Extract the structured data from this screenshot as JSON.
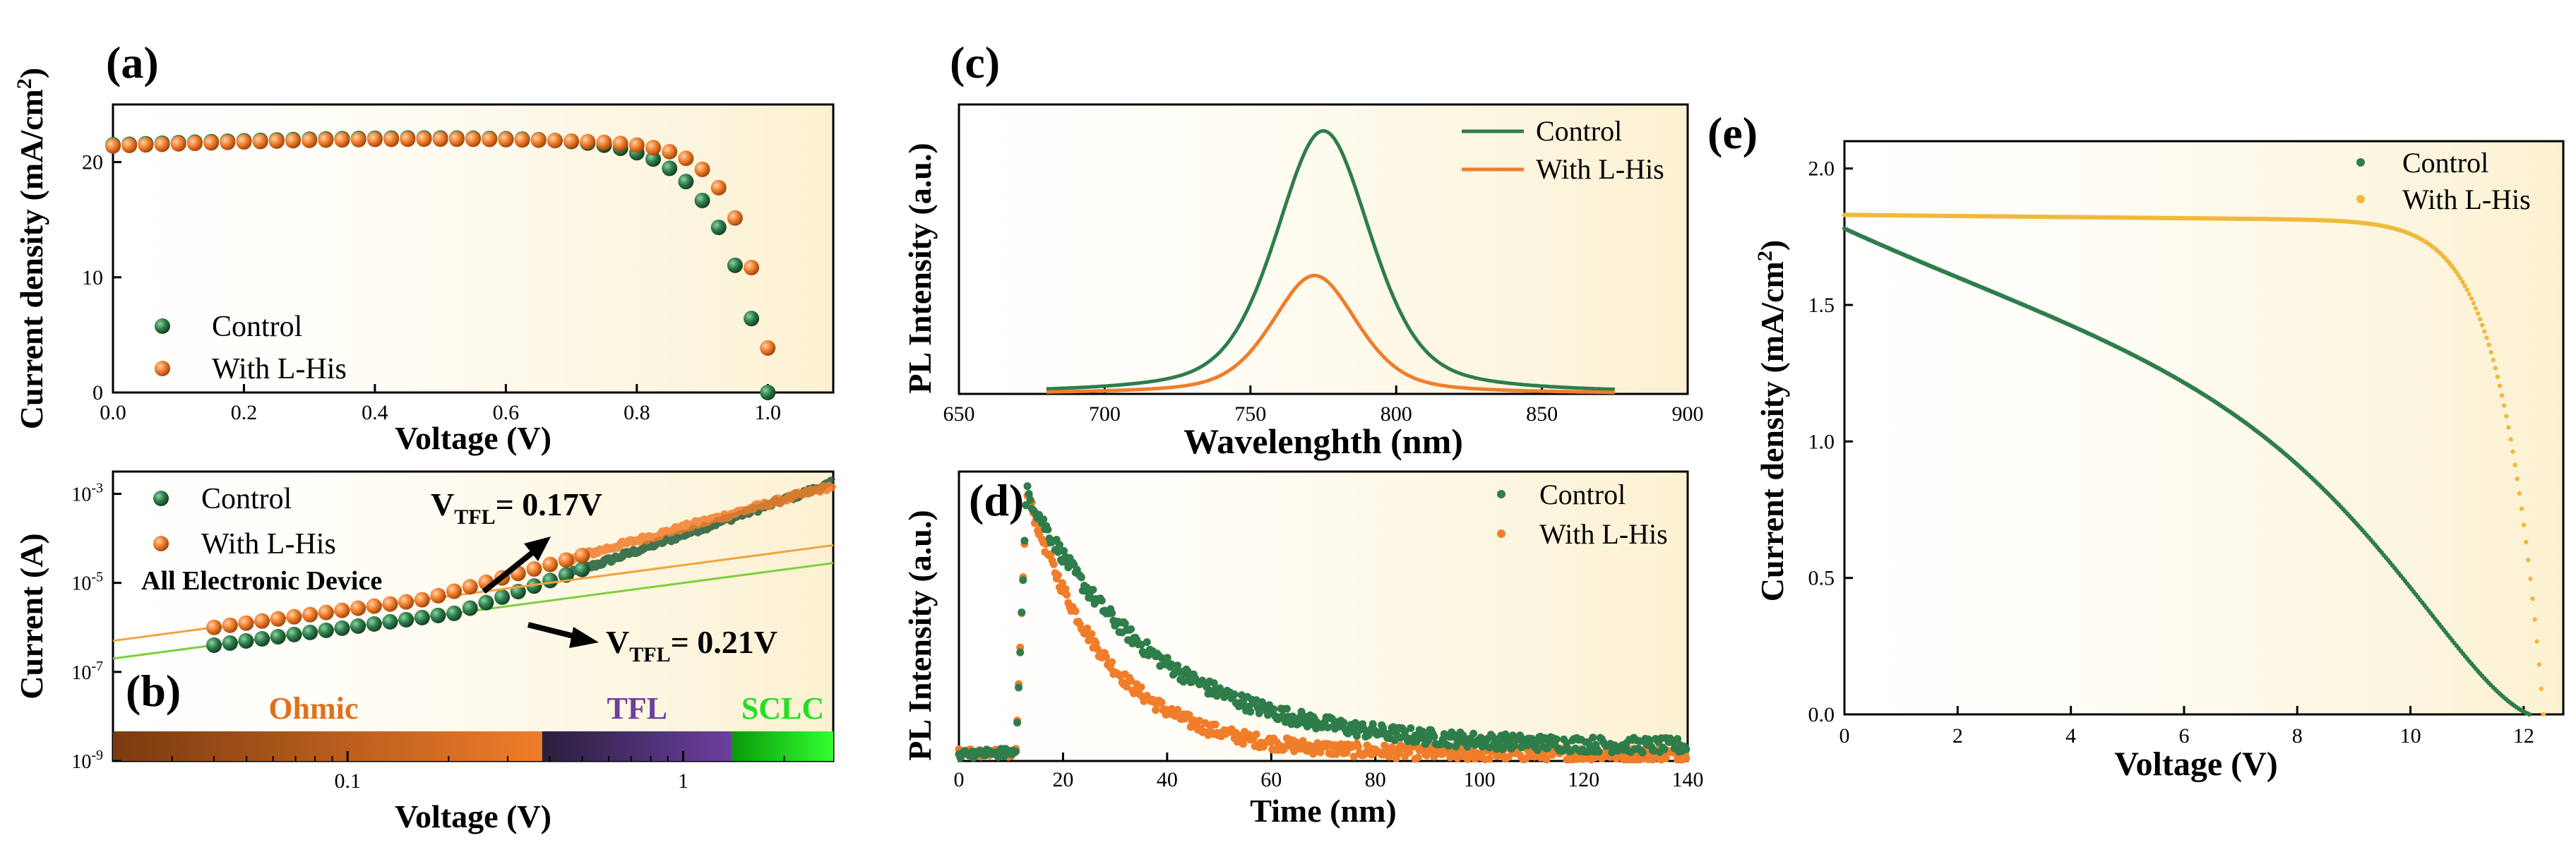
{
  "colors": {
    "control": "#2e7d4b",
    "control_dark": "#1f5c36",
    "lhis": "#f07d2a",
    "lhis_e": "#f0b93c",
    "ohmic": "#e0701e",
    "tfl": "#6c3fa0",
    "sclc": "#22e022",
    "panel_bg_start": "#ffffff",
    "panel_bg_end": "#fbf1d2"
  },
  "chart_data": [
    {
      "id": "a",
      "panel_label": "(a)",
      "type": "scatter",
      "xlabel": "Voltage (V)",
      "ylabel": "Current  density (mA/cm",
      "ylabel_sup": "2",
      "ylabel_close": ")",
      "xlim": [
        0,
        1.1
      ],
      "ylim": [
        0,
        25
      ],
      "xticks": [
        "0.0",
        "0.2",
        "0.4",
        "0.6",
        "0.8",
        "1.0"
      ],
      "xtick_values": [
        0,
        0.2,
        0.4,
        0.6,
        0.8,
        1.0
      ],
      "yticks": [
        "0",
        "10",
        "20"
      ],
      "ytick_values": [
        0,
        10,
        20
      ],
      "legend": [
        "Control",
        "With L-His"
      ],
      "series": [
        {
          "name": "Control",
          "x_start": 0,
          "x_end": 1.0,
          "step": 0.025,
          "jsc": 21.5,
          "voc": 1.0,
          "knee": 14
        },
        {
          "name": "With L-His",
          "x_start": 0,
          "x_end": 1.0,
          "step": 0.025,
          "jsc": 21.4,
          "voc": 1.01,
          "knee": 20
        }
      ]
    },
    {
      "id": "b",
      "panel_label": "(b)",
      "type": "scatter",
      "xscale": "log",
      "yscale": "log",
      "xlabel": "Voltage (V)",
      "ylabel": "Current (A)",
      "xlim": [
        0.02,
        2.8
      ],
      "ylim_exp": [
        -9,
        -2.5
      ],
      "xticks": [
        "0.1",
        "1"
      ],
      "xtick_values": [
        0.1,
        1
      ],
      "yticks": [
        {
          "base": "10",
          "exp": "-9"
        },
        {
          "base": "10",
          "exp": "-7"
        },
        {
          "base": "10",
          "exp": "-5"
        },
        {
          "base": "10",
          "exp": "-3"
        }
      ],
      "ytick_exps": [
        -9,
        -7,
        -5,
        -3
      ],
      "legend": [
        "Control",
        "With L-His"
      ],
      "annotations": {
        "device": "All Electronic Device",
        "vtfl_lhis": {
          "v": "V",
          "sub": "TFL",
          "rest": "= 0.17V"
        },
        "vtfl_control": {
          "v": "V",
          "sub": "TFL",
          "rest": "= 0.21V"
        },
        "regions": [
          {
            "label": "Ohmic",
            "v_start": 0.02,
            "v_end": 0.38
          },
          {
            "label": "TFL",
            "v_start": 0.38,
            "v_end": 1.4
          },
          {
            "label": "SCLC",
            "v_start": 1.4,
            "v_end": 2.8
          }
        ]
      },
      "series": [
        {
          "name": "Control",
          "log_i_at_002": -6.7,
          "slope_low": 1.0,
          "v_tfl": 0.21,
          "slope_high": 2.6
        },
        {
          "name": "With L-His",
          "log_i_at_002": -6.3,
          "slope_low": 1.0,
          "v_tfl": 0.17,
          "slope_high": 2.1
        }
      ]
    },
    {
      "id": "c",
      "panel_label": "(c)",
      "type": "line",
      "xlabel": "Wavelenghth (nm)",
      "ylabel": "PL Intensity (a.u.)",
      "xlim": [
        650,
        900
      ],
      "ylim": [
        0,
        1.1
      ],
      "xticks": [
        "650",
        "700",
        "750",
        "800",
        "850",
        "900"
      ],
      "xtick_values": [
        650,
        700,
        750,
        800,
        850,
        900
      ],
      "legend": [
        "Control",
        "With L-His"
      ],
      "series": [
        {
          "name": "Control",
          "center": 775,
          "amplitude": 1.0,
          "width": 20,
          "x_start": 680,
          "x_end": 875
        },
        {
          "name": "With L-His",
          "center": 772,
          "amplitude": 0.45,
          "width": 18,
          "x_start": 680,
          "x_end": 875
        }
      ]
    },
    {
      "id": "d",
      "panel_label": "(d)",
      "type": "scatter",
      "xlabel": "Time (nm)",
      "ylabel": "PL Intensity (a.u.)",
      "xlim": [
        0,
        140
      ],
      "ylim": [
        0,
        1.05
      ],
      "xticks": [
        "0",
        "20",
        "40",
        "60",
        "80",
        "100",
        "120",
        "140"
      ],
      "xtick_values": [
        0,
        20,
        40,
        60,
        80,
        100,
        120,
        140
      ],
      "legend": [
        "Control",
        "With L-His"
      ],
      "series": [
        {
          "name": "Control",
          "onset": 11,
          "peak_time": 13,
          "tau": 24,
          "floor": 0.05,
          "noise": 0.04
        },
        {
          "name": "With L-His",
          "onset": 11,
          "peak_time": 13,
          "tau": 15,
          "floor": 0.025,
          "noise": 0.035
        }
      ]
    },
    {
      "id": "e",
      "panel_label": "(e)",
      "type": "scatter",
      "xlabel": "Voltage (V)",
      "ylabel": "Current density (mA/cm",
      "ylabel_sup": "2",
      "ylabel_close": ")",
      "xlim": [
        0,
        12.7
      ],
      "ylim": [
        0,
        2.1
      ],
      "xticks": [
        "0",
        "2",
        "4",
        "6",
        "8",
        "10",
        "12"
      ],
      "xtick_values": [
        0,
        2,
        4,
        6,
        8,
        10,
        12
      ],
      "yticks": [
        "0.0",
        "0.5",
        "1.0",
        "1.5",
        "2.0"
      ],
      "ytick_values": [
        0,
        0.5,
        1.0,
        1.5,
        2.0
      ],
      "legend": [
        "Control",
        "With L-His"
      ],
      "series": [
        {
          "name": "Control",
          "jsc": 1.78,
          "voc": 12.1,
          "slope": 0.027,
          "knee": 7
        },
        {
          "name": "With L-His",
          "jsc": 1.83,
          "voc": 12.35,
          "slope": 0.002,
          "knee": 17
        }
      ]
    }
  ]
}
